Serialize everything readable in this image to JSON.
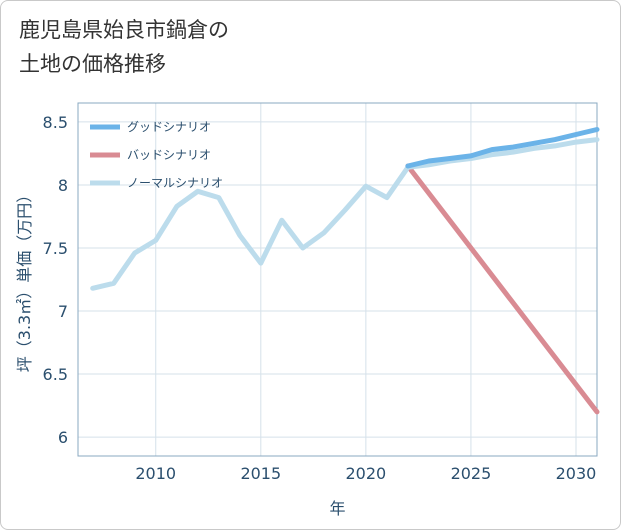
{
  "header": {
    "title_line1": "鹿児島県始良市鍋倉の",
    "title_line2": "土地の価格推移"
  },
  "chart_data": {
    "type": "line",
    "xlabel": "年",
    "ylabel": "坪（3.3㎡）単価（万円）",
    "xlim": [
      2006.3,
      2031
    ],
    "ylim": [
      5.85,
      8.65
    ],
    "x_ticks": [
      2010,
      2015,
      2020,
      2025,
      2030
    ],
    "y_ticks": [
      6,
      6.5,
      7,
      7.5,
      8,
      8.5
    ],
    "y_tick_labels": [
      "6",
      "6.5",
      "7",
      "7.5",
      "8",
      "8.5"
    ],
    "x_tick_labels": [
      "2010",
      "2015",
      "2020",
      "2025",
      "2030"
    ],
    "legend_position": "top-left",
    "series": [
      {
        "name": "グッドシナリオ",
        "color": "#6bb3e8",
        "x": [
          2022,
          2023,
          2024,
          2025,
          2026,
          2027,
          2028,
          2029,
          2030,
          2031
        ],
        "values": [
          8.15,
          8.19,
          8.21,
          8.23,
          8.28,
          8.3,
          8.33,
          8.36,
          8.4,
          8.44
        ]
      },
      {
        "name": "バッドシナリオ",
        "color": "#d98b93",
        "x": [
          2022,
          2031
        ],
        "values": [
          8.15,
          6.2
        ]
      },
      {
        "name": "ノーマルシナリオ",
        "color": "#bcdcec",
        "x": [
          2007,
          2008,
          2009,
          2010,
          2011,
          2012,
          2013,
          2014,
          2015,
          2016,
          2017,
          2018,
          2019,
          2020,
          2021,
          2022,
          2023,
          2024,
          2025,
          2026,
          2027,
          2028,
          2029,
          2030,
          2031
        ],
        "values": [
          7.18,
          7.22,
          7.46,
          7.56,
          7.83,
          7.95,
          7.9,
          7.6,
          7.38,
          7.72,
          7.5,
          7.62,
          7.8,
          7.99,
          7.9,
          8.14,
          8.16,
          8.19,
          8.21,
          8.24,
          8.26,
          8.29,
          8.31,
          8.34,
          8.36
        ]
      }
    ]
  }
}
